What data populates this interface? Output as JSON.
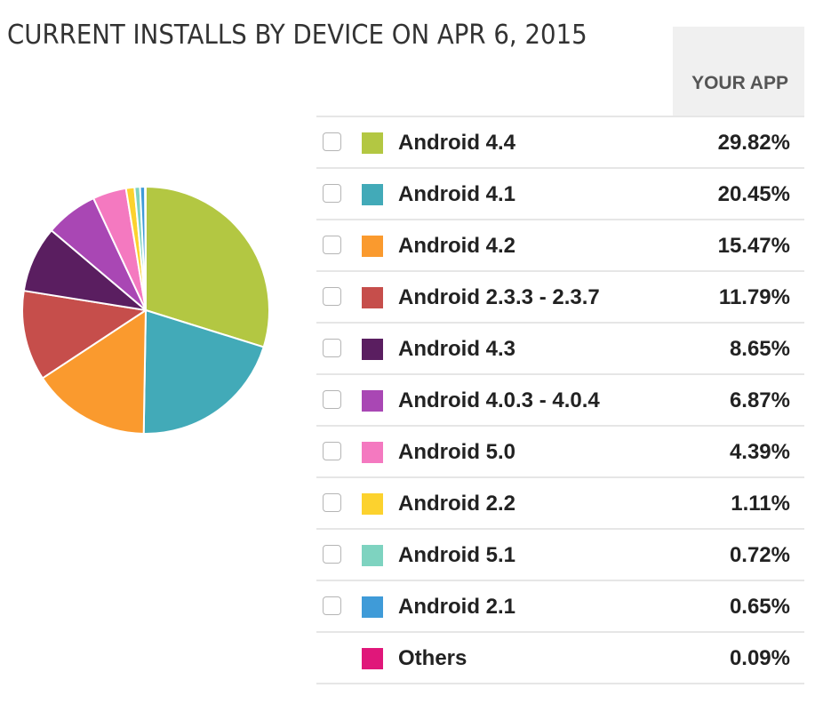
{
  "title": "CURRENT INSTALLS BY DEVICE ON APR 6, 2015",
  "column_header": "YOUR APP",
  "chart_data": {
    "type": "pie",
    "title": "CURRENT INSTALLS BY DEVICE ON APR 6, 2015",
    "unit": "%",
    "slices": [
      {
        "label": "Android 4.4",
        "value": 29.82,
        "display": "29.82%",
        "color": "#b3c742",
        "checkbox": true
      },
      {
        "label": "Android 4.1",
        "value": 20.45,
        "display": "20.45%",
        "color": "#42aab8",
        "checkbox": true
      },
      {
        "label": "Android 4.2",
        "value": 15.47,
        "display": "15.47%",
        "color": "#fa9a2e",
        "checkbox": true
      },
      {
        "label": "Android 2.3.3 - 2.3.7",
        "value": 11.79,
        "display": "11.79%",
        "color": "#c64e4b",
        "checkbox": true
      },
      {
        "label": "Android 4.3",
        "value": 8.65,
        "display": "8.65%",
        "color": "#5a1e60",
        "checkbox": true
      },
      {
        "label": "Android 4.0.3 - 4.0.4",
        "value": 6.87,
        "display": "6.87%",
        "color": "#a947b4",
        "checkbox": true
      },
      {
        "label": "Android 5.0",
        "value": 4.39,
        "display": "4.39%",
        "color": "#f479c0",
        "checkbox": true
      },
      {
        "label": "Android 2.2",
        "value": 1.11,
        "display": "1.11%",
        "color": "#fcd22e",
        "checkbox": true
      },
      {
        "label": "Android 5.1",
        "value": 0.72,
        "display": "0.72%",
        "color": "#7ed3c0",
        "checkbox": true
      },
      {
        "label": "Android 2.1",
        "value": 0.65,
        "display": "0.65%",
        "color": "#3f9bd8",
        "checkbox": true
      },
      {
        "label": "Others",
        "value": 0.09,
        "display": "0.09%",
        "color": "#e0177a",
        "checkbox": false
      }
    ]
  }
}
